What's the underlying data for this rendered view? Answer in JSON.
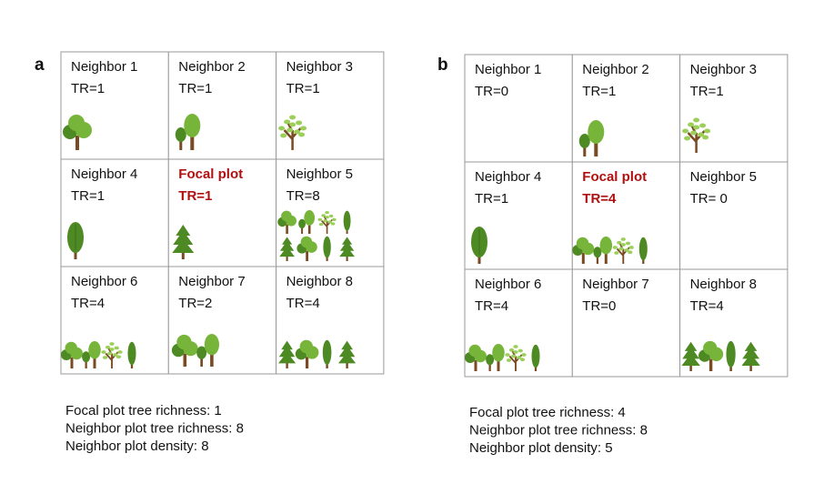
{
  "panels": [
    {
      "label": "a",
      "cells": [
        {
          "name": "Neighbor 1",
          "tr": "TR=1"
        },
        {
          "name": "Neighbor 2",
          "tr": "TR=1"
        },
        {
          "name": "Neighbor 3",
          "tr": "TR=1"
        },
        {
          "name": "Neighbor 4",
          "tr": "TR=1"
        },
        {
          "name": "Focal plot",
          "tr": "TR=1"
        },
        {
          "name": "Neighbor 5",
          "tr": "TR=8"
        },
        {
          "name": "Neighbor 6",
          "tr": "TR=4"
        },
        {
          "name": "Neighbor 7",
          "tr": "TR=2"
        },
        {
          "name": "Neighbor 8",
          "tr": "TR=4"
        }
      ],
      "summary": [
        "Focal plot tree richness: 1",
        "Neighbor plot tree richness: 8",
        "Neighbor plot density: 8"
      ]
    },
    {
      "label": "b",
      "cells": [
        {
          "name": "Neighbor 1",
          "tr": "TR=0"
        },
        {
          "name": "Neighbor 2",
          "tr": "TR=1"
        },
        {
          "name": "Neighbor 3",
          "tr": "TR=1"
        },
        {
          "name": "Neighbor 4",
          "tr": "TR=1"
        },
        {
          "name": "Focal plot",
          "tr": "TR=4"
        },
        {
          "name": "Neighbor 5",
          "tr": "TR= 0"
        },
        {
          "name": "Neighbor 6",
          "tr": "TR=4"
        },
        {
          "name": "Neighbor 7",
          "tr": "TR=0"
        },
        {
          "name": "Neighbor 8",
          "tr": "TR=4"
        }
      ],
      "summary": [
        "Focal plot tree richness: 4",
        "Neighbor plot tree richness: 8",
        "Neighbor plot density: 5"
      ]
    }
  ]
}
